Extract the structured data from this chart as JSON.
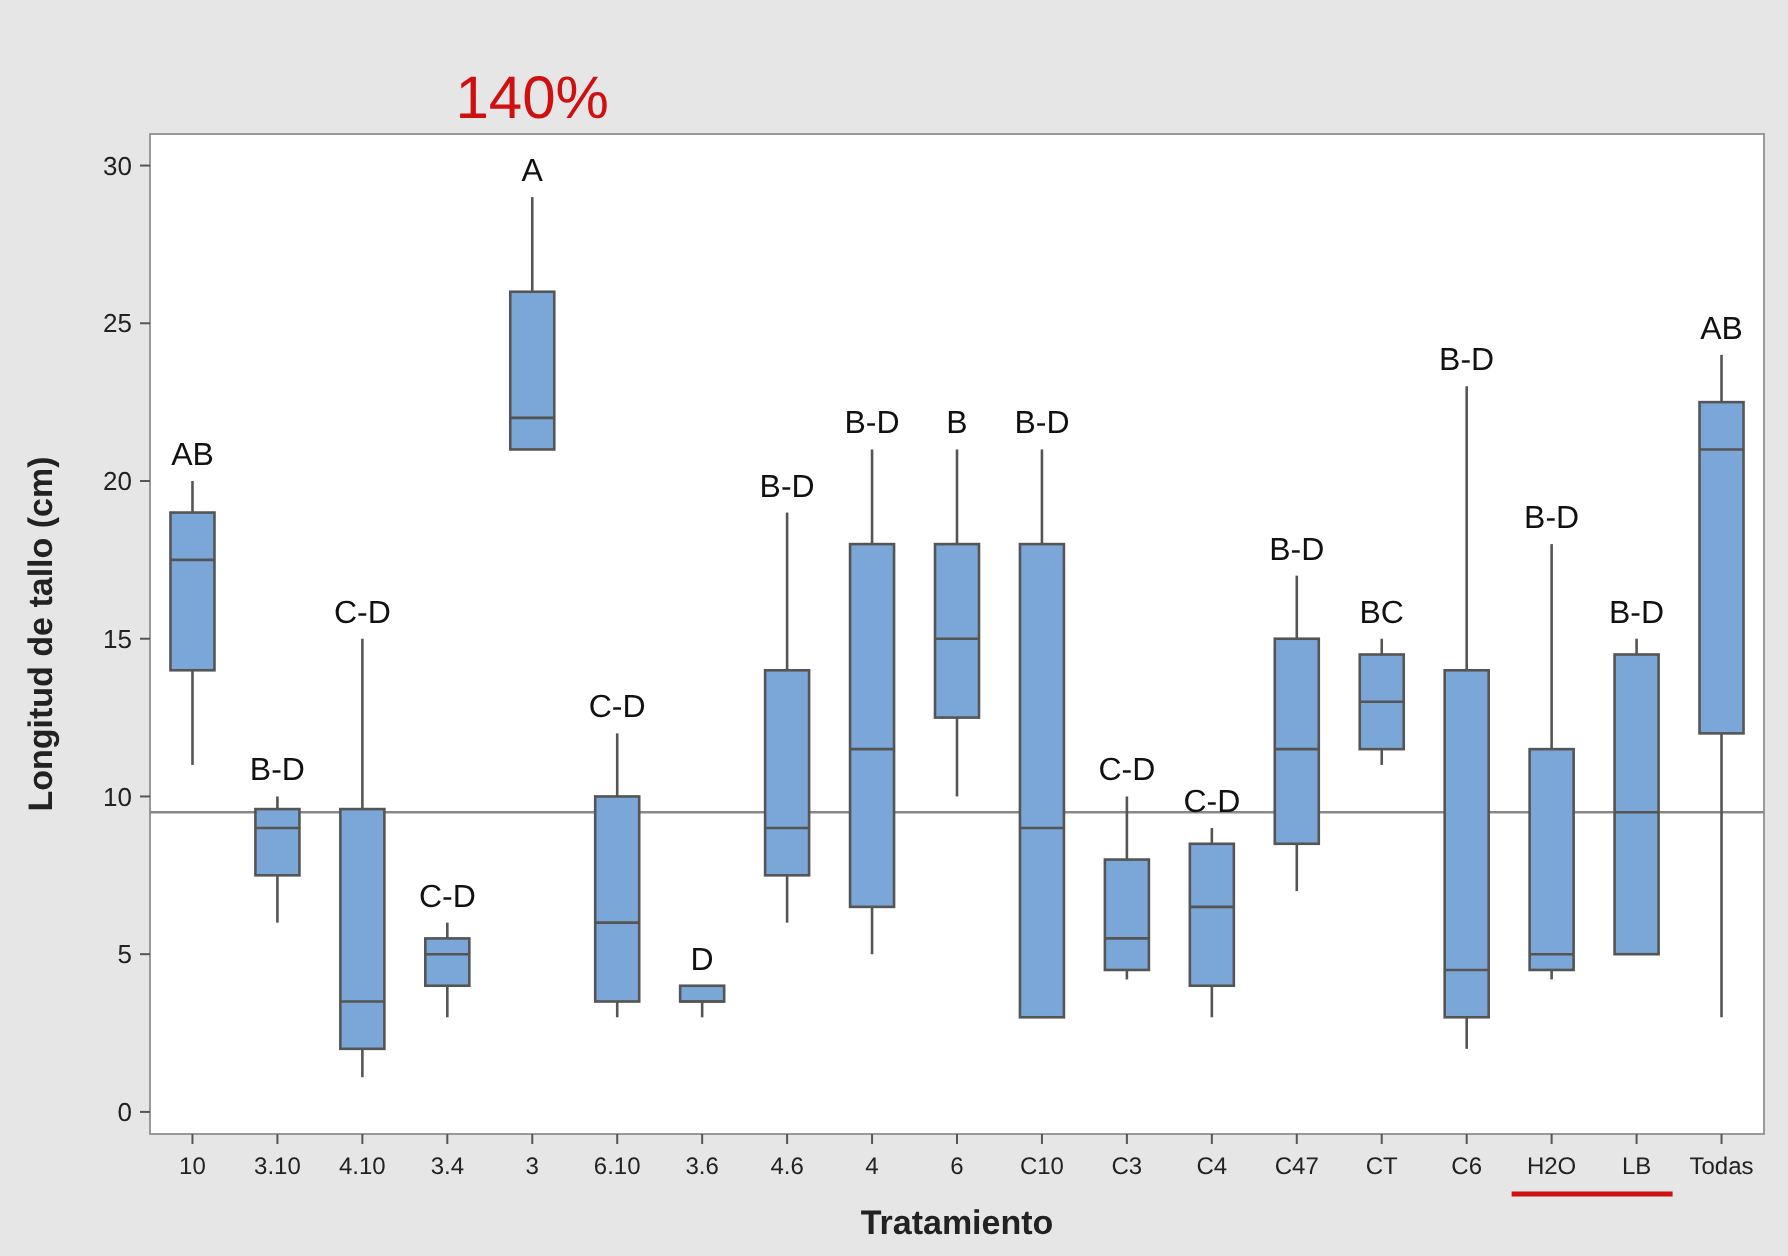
{
  "chart_data": {
    "type": "box",
    "xlabel": "Tratamiento",
    "ylabel": "Longitud de tallo (cm)",
    "categories": [
      "10",
      "3.10",
      "4.10",
      "3.4",
      "3",
      "6.10",
      "3.6",
      "4.6",
      "4",
      "6",
      "C10",
      "C3",
      "C4",
      "C47",
      "CT",
      "C6",
      "H2O",
      "LB",
      "Todas"
    ],
    "color": "#7ba6d8",
    "boxes": [
      {
        "low": 11,
        "q1": 14,
        "median": 17.5,
        "q3": 19,
        "high": 20
      },
      {
        "low": 6,
        "q1": 7.5,
        "median": 9,
        "q3": 9.6,
        "high": 10
      },
      {
        "low": 1.1,
        "q1": 2,
        "median": 3.5,
        "q3": 9.6,
        "high": 15
      },
      {
        "low": 3,
        "q1": 4,
        "median": 5,
        "q3": 5.5,
        "high": 6
      },
      {
        "low": 21,
        "q1": 21,
        "median": 22,
        "q3": 26,
        "high": 29
      },
      {
        "low": 3,
        "q1": 3.5,
        "median": 6,
        "q3": 10,
        "high": 12
      },
      {
        "low": 3,
        "q1": 3.5,
        "median": 3.5,
        "q3": 4,
        "high": 4
      },
      {
        "low": 6,
        "q1": 7.5,
        "median": 9,
        "q3": 14,
        "high": 19
      },
      {
        "low": 5,
        "q1": 6.5,
        "median": 11.5,
        "q3": 18,
        "high": 21
      },
      {
        "low": 10,
        "q1": 12.5,
        "median": 15,
        "q3": 18,
        "high": 21
      },
      {
        "low": 3,
        "q1": 3,
        "median": 9,
        "q3": 18,
        "high": 21
      },
      {
        "low": 4.2,
        "q1": 4.5,
        "median": 5.5,
        "q3": 8,
        "high": 10
      },
      {
        "low": 3,
        "q1": 4,
        "median": 6.5,
        "q3": 8.5,
        "high": 9
      },
      {
        "low": 7,
        "q1": 8.5,
        "median": 11.5,
        "q3": 15,
        "high": 17
      },
      {
        "low": 11,
        "q1": 11.5,
        "median": 13,
        "q3": 14.5,
        "high": 15
      },
      {
        "low": 2,
        "q1": 3,
        "median": 4.5,
        "q3": 14,
        "high": 23
      },
      {
        "low": 4.2,
        "q1": 4.5,
        "median": 5,
        "q3": 11.5,
        "high": 18
      },
      {
        "low": 5,
        "q1": 5,
        "median": 9.5,
        "q3": 14.5,
        "high": 15
      },
      {
        "low": 3,
        "q1": 12,
        "median": 21,
        "q3": 22.5,
        "high": 24
      }
    ],
    "ylim": [
      -0.7,
      31
    ],
    "yticks": [
      0,
      5,
      10,
      15,
      20,
      25,
      30
    ],
    "ref_lines": [
      {
        "axis": "y",
        "value": 9.5,
        "color": "#888888"
      }
    ],
    "annotations": [
      "140%",
      {
        "text": "AB",
        "x": "10",
        "y": 20
      },
      {
        "text": "B-D",
        "x": "3.10",
        "y": 10
      },
      {
        "text": "C-D",
        "x": "4.10",
        "y": 15
      },
      {
        "text": "C-D",
        "x": "3.4",
        "y": 6
      },
      {
        "text": "A",
        "x": "3",
        "y": 29
      },
      {
        "text": "C-D",
        "x": "6.10",
        "y": 12
      },
      {
        "text": "D",
        "x": "3.6",
        "y": 4
      },
      {
        "text": "B-D",
        "x": "4.6",
        "y": 19
      },
      {
        "text": "B-D",
        "x": "4",
        "y": 21
      },
      {
        "text": "B",
        "x": "6",
        "y": 21
      },
      {
        "text": "B-D",
        "x": "C10",
        "y": 21
      },
      {
        "text": "C-D",
        "x": "C3",
        "y": 10
      },
      {
        "text": "C-D",
        "x": "C4",
        "y": 9
      },
      {
        "text": "B-D",
        "x": "C47",
        "y": 17
      },
      {
        "text": "BC",
        "x": "CT",
        "y": 15
      },
      {
        "text": "B-D",
        "x": "C6",
        "y": 23
      },
      {
        "text": "B-D",
        "x": "H2O",
        "y": 18
      },
      {
        "text": "B-D",
        "x": "LB",
        "y": 15
      },
      {
        "text": "AB",
        "x": "Todas",
        "y": 24
      }
    ]
  }
}
